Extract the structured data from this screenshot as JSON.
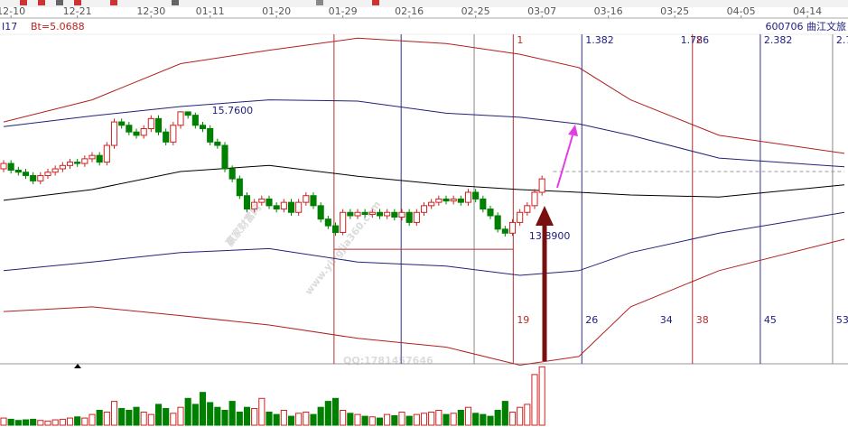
{
  "chart_data": {
    "type": "candlestick",
    "indicator": "I17",
    "indicator_value": "Bt=5.0688",
    "title": "600706  曲江文旅",
    "watermark": {
      "brand": "赢家财富网",
      "site": "www.yingjia360.com",
      "contact": "QQ:1781457646"
    },
    "xlim": [
      0,
      114
    ],
    "ylim": [
      11.95,
      17.15
    ],
    "xticks": [
      {
        "value": 1,
        "label": "12-10"
      },
      {
        "value": 10,
        "label": "12-21"
      },
      {
        "value": 20,
        "label": "12-30"
      },
      {
        "value": 28,
        "label": "01-11"
      },
      {
        "value": 37,
        "label": "01-20"
      },
      {
        "value": 46,
        "label": "01-29"
      },
      {
        "value": 55,
        "label": "02-16"
      },
      {
        "value": 64,
        "label": "02-25"
      },
      {
        "value": 73,
        "label": "03-07"
      },
      {
        "value": 82,
        "label": "03-16"
      },
      {
        "value": 91,
        "label": "03-25"
      },
      {
        "value": 100,
        "label": "04-05"
      },
      {
        "value": 109,
        "label": "04-14"
      }
    ],
    "up_color": "#d02020",
    "down_color": "#008000",
    "candles": {
      "open": [
        14.9,
        14.98,
        14.88,
        14.85,
        14.8,
        14.72,
        14.8,
        14.85,
        14.9,
        14.95,
        15.0,
        14.98,
        15.05,
        15.1,
        15.0,
        15.25,
        15.6,
        15.55,
        15.45,
        15.4,
        15.5,
        15.65,
        15.45,
        15.3,
        15.55,
        15.75,
        15.7,
        15.55,
        15.5,
        15.3,
        15.25,
        14.9,
        14.75,
        14.5,
        14.3,
        14.4,
        14.45,
        14.35,
        14.3,
        14.4,
        14.25,
        14.4,
        14.5,
        14.35,
        14.15,
        14.05,
        13.95,
        14.25,
        14.2,
        14.25,
        14.22,
        14.25,
        14.2,
        14.25,
        14.18,
        14.25,
        14.1,
        14.25,
        14.35,
        14.4,
        14.45,
        14.42,
        14.45,
        14.4,
        14.55,
        14.45,
        14.3,
        14.2,
        14.0,
        13.94,
        14.1,
        14.25,
        14.35,
        14.55
      ],
      "high": [
        15.03,
        15.03,
        14.93,
        14.9,
        14.85,
        14.85,
        14.9,
        14.95,
        15.0,
        15.05,
        15.05,
        15.1,
        15.15,
        15.15,
        15.3,
        15.65,
        15.65,
        15.6,
        15.5,
        15.55,
        15.7,
        15.7,
        15.5,
        15.6,
        15.76,
        15.74,
        15.74,
        15.6,
        15.55,
        15.35,
        15.3,
        14.95,
        14.8,
        14.55,
        14.45,
        14.5,
        14.5,
        14.4,
        14.45,
        14.45,
        14.45,
        14.55,
        14.55,
        14.4,
        14.2,
        14.1,
        14.3,
        14.3,
        14.3,
        14.3,
        14.3,
        14.3,
        14.3,
        14.3,
        14.3,
        14.3,
        14.3,
        14.4,
        14.45,
        14.5,
        14.5,
        14.5,
        14.5,
        14.6,
        14.6,
        14.5,
        14.35,
        14.25,
        14.05,
        14.15,
        14.3,
        14.4,
        14.6,
        14.8
      ],
      "low": [
        14.85,
        14.83,
        14.8,
        14.75,
        14.67,
        14.67,
        14.75,
        14.8,
        14.85,
        14.9,
        14.93,
        14.93,
        15.0,
        14.95,
        14.95,
        15.2,
        15.5,
        15.4,
        15.35,
        15.35,
        15.45,
        15.4,
        15.25,
        15.25,
        15.5,
        15.65,
        15.5,
        15.45,
        15.25,
        15.2,
        14.85,
        14.7,
        14.45,
        14.25,
        14.25,
        14.35,
        14.3,
        14.25,
        14.25,
        14.2,
        14.2,
        14.35,
        14.3,
        14.1,
        14.0,
        13.9,
        13.91,
        14.15,
        14.15,
        14.17,
        14.17,
        14.15,
        14.15,
        14.13,
        14.13,
        14.05,
        14.05,
        14.2,
        14.3,
        14.35,
        14.37,
        14.37,
        14.35,
        14.35,
        14.4,
        14.25,
        14.15,
        13.95,
        13.89,
        13.9,
        14.05,
        14.2,
        14.3,
        14.5
      ],
      "close": [
        14.98,
        14.88,
        14.85,
        14.8,
        14.72,
        14.8,
        14.85,
        14.9,
        14.95,
        15.0,
        14.98,
        15.05,
        15.1,
        15.0,
        15.25,
        15.6,
        15.55,
        15.45,
        15.4,
        15.5,
        15.65,
        15.45,
        15.3,
        15.55,
        15.75,
        15.7,
        15.55,
        15.5,
        15.3,
        15.25,
        14.9,
        14.75,
        14.5,
        14.3,
        14.4,
        14.45,
        14.35,
        14.3,
        14.4,
        14.25,
        14.4,
        14.5,
        14.35,
        14.15,
        14.05,
        13.95,
        14.25,
        14.2,
        14.25,
        14.22,
        14.25,
        14.2,
        14.25,
        14.18,
        14.25,
        14.1,
        14.25,
        14.35,
        14.4,
        14.45,
        14.42,
        14.45,
        14.4,
        14.55,
        14.45,
        14.3,
        14.2,
        14.0,
        13.94,
        14.1,
        14.25,
        14.35,
        14.55,
        14.75
      ]
    },
    "volume": {
      "ylim": [
        0,
        100
      ],
      "values": [
        12,
        10,
        8,
        9,
        10,
        8,
        7,
        9,
        10,
        12,
        14,
        12,
        18,
        25,
        22,
        40,
        28,
        25,
        30,
        22,
        18,
        35,
        28,
        20,
        30,
        45,
        35,
        55,
        38,
        30,
        25,
        40,
        22,
        30,
        28,
        45,
        22,
        18,
        25,
        15,
        20,
        22,
        18,
        30,
        40,
        45,
        25,
        20,
        18,
        15,
        14,
        12,
        18,
        16,
        22,
        15,
        18,
        20,
        22,
        25,
        18,
        20,
        25,
        30,
        20,
        18,
        15,
        25,
        40,
        22,
        30,
        35,
        85,
        98
      ]
    },
    "bands": {
      "x": [
        0,
        12,
        24,
        36,
        48,
        60,
        70,
        78,
        85,
        97,
        114
      ],
      "series": [
        {
          "color": "#b02020",
          "values": [
            15.6,
            15.93,
            16.47,
            16.67,
            16.85,
            16.77,
            16.61,
            16.41,
            15.93,
            15.4,
            15.13
          ]
        },
        {
          "color": "#22227a",
          "values": [
            15.53,
            15.69,
            15.83,
            15.93,
            15.91,
            15.73,
            15.67,
            15.57,
            15.4,
            15.06,
            14.93
          ]
        },
        {
          "color": "#000000",
          "values": [
            14.43,
            14.59,
            14.86,
            14.95,
            14.79,
            14.66,
            14.59,
            14.55,
            14.51,
            14.48,
            14.66
          ]
        },
        {
          "color": "#22227a",
          "values": [
            13.38,
            13.51,
            13.65,
            13.71,
            13.51,
            13.45,
            13.31,
            13.38,
            13.65,
            13.94,
            14.25
          ]
        },
        {
          "color": "#b02020",
          "values": [
            12.77,
            12.84,
            12.71,
            12.57,
            12.37,
            12.24,
            11.97,
            12.1,
            12.84,
            13.38,
            13.85
          ]
        }
      ]
    },
    "annotations": [
      {
        "x": 28,
        "value": 15.76,
        "label": "15.7600"
      },
      {
        "x": 71,
        "value": 13.89,
        "label": "13.8900"
      }
    ],
    "vertical_lines": [
      {
        "x": 44.8,
        "color": "#b03030"
      },
      {
        "x": 53.9,
        "color": "#303090"
      },
      {
        "x": 63.8,
        "color": "#888888"
      },
      {
        "x": 69.1,
        "color": "#b03030"
      },
      {
        "x": 78.4,
        "color": "#303090"
      },
      {
        "x": 93.4,
        "color": "#b03030"
      },
      {
        "x": 102.6,
        "color": "#303090"
      },
      {
        "x": 112.4,
        "color": "#888888"
      }
    ],
    "fib_top_labels": [
      {
        "x": 69.1,
        "label": "1",
        "color": "#b03030"
      },
      {
        "x": 78.4,
        "label": "1.382",
        "color": "#202080"
      },
      {
        "x": 91.3,
        "label": "1.786",
        "color": "#202080"
      },
      {
        "x": 93.4,
        "label": "2",
        "color": "#b03030"
      },
      {
        "x": 102.6,
        "label": "2.382",
        "color": "#202080"
      },
      {
        "x": 112.4,
        "label": "2.7",
        "color": "#202080"
      }
    ],
    "fib_bottom_labels": [
      {
        "x": 69.1,
        "label": "19",
        "color": "#b03030"
      },
      {
        "x": 78.4,
        "label": "26",
        "color": "#202080"
      },
      {
        "x": 88.5,
        "label": "34",
        "color": "#202080"
      },
      {
        "x": 93.4,
        "label": "38",
        "color": "#b03030"
      },
      {
        "x": 102.6,
        "label": "45",
        "color": "#202080"
      },
      {
        "x": 112.4,
        "label": "53",
        "color": "#202080"
      }
    ],
    "hlines": [
      {
        "from": 44.8,
        "to": 69.1,
        "value": 13.7,
        "color": "#b03030",
        "dash": false
      },
      {
        "from": 74.5,
        "to": 114,
        "value": 14.86,
        "color": "#999999",
        "dash": true
      }
    ]
  }
}
